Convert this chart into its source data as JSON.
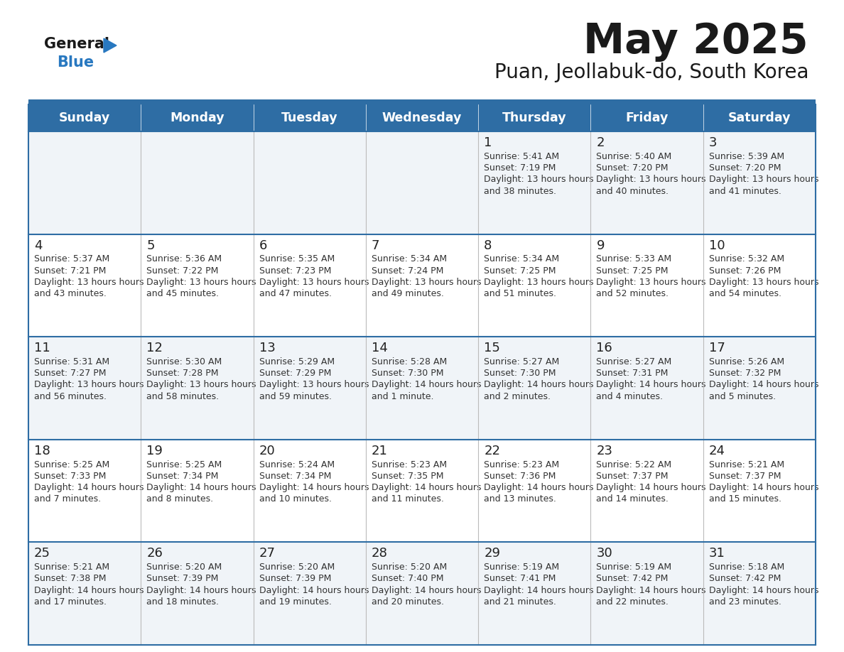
{
  "title": "May 2025",
  "subtitle": "Puan, Jeollabuk-do, South Korea",
  "days_of_week": [
    "Sunday",
    "Monday",
    "Tuesday",
    "Wednesday",
    "Thursday",
    "Friday",
    "Saturday"
  ],
  "header_bg": "#2E6DA4",
  "header_text_color": "#FFFFFF",
  "row_bg_odd": "#F0F4F8",
  "row_bg_even": "#FFFFFF",
  "border_color": "#2E6DA4",
  "day_num_color": "#222222",
  "cell_text_color": "#333333",
  "title_color": "#1a1a1a",
  "subtitle_color": "#1a1a1a",
  "logo_general_color": "#1a1a1a",
  "logo_blue_color": "#2878C0",
  "logo_triangle_color": "#2878C0",
  "calendar_data": [
    [
      null,
      null,
      null,
      null,
      {
        "day": 1,
        "sunrise": "5:41 AM",
        "sunset": "7:19 PM",
        "daylight": "13 hours and 38 minutes"
      },
      {
        "day": 2,
        "sunrise": "5:40 AM",
        "sunset": "7:20 PM",
        "daylight": "13 hours and 40 minutes"
      },
      {
        "day": 3,
        "sunrise": "5:39 AM",
        "sunset": "7:20 PM",
        "daylight": "13 hours and 41 minutes"
      }
    ],
    [
      {
        "day": 4,
        "sunrise": "5:37 AM",
        "sunset": "7:21 PM",
        "daylight": "13 hours and 43 minutes"
      },
      {
        "day": 5,
        "sunrise": "5:36 AM",
        "sunset": "7:22 PM",
        "daylight": "13 hours and 45 minutes"
      },
      {
        "day": 6,
        "sunrise": "5:35 AM",
        "sunset": "7:23 PM",
        "daylight": "13 hours and 47 minutes"
      },
      {
        "day": 7,
        "sunrise": "5:34 AM",
        "sunset": "7:24 PM",
        "daylight": "13 hours and 49 minutes"
      },
      {
        "day": 8,
        "sunrise": "5:34 AM",
        "sunset": "7:25 PM",
        "daylight": "13 hours and 51 minutes"
      },
      {
        "day": 9,
        "sunrise": "5:33 AM",
        "sunset": "7:25 PM",
        "daylight": "13 hours and 52 minutes"
      },
      {
        "day": 10,
        "sunrise": "5:32 AM",
        "sunset": "7:26 PM",
        "daylight": "13 hours and 54 minutes"
      }
    ],
    [
      {
        "day": 11,
        "sunrise": "5:31 AM",
        "sunset": "7:27 PM",
        "daylight": "13 hours and 56 minutes"
      },
      {
        "day": 12,
        "sunrise": "5:30 AM",
        "sunset": "7:28 PM",
        "daylight": "13 hours and 58 minutes"
      },
      {
        "day": 13,
        "sunrise": "5:29 AM",
        "sunset": "7:29 PM",
        "daylight": "13 hours and 59 minutes"
      },
      {
        "day": 14,
        "sunrise": "5:28 AM",
        "sunset": "7:30 PM",
        "daylight": "14 hours and 1 minute"
      },
      {
        "day": 15,
        "sunrise": "5:27 AM",
        "sunset": "7:30 PM",
        "daylight": "14 hours and 2 minutes"
      },
      {
        "day": 16,
        "sunrise": "5:27 AM",
        "sunset": "7:31 PM",
        "daylight": "14 hours and 4 minutes"
      },
      {
        "day": 17,
        "sunrise": "5:26 AM",
        "sunset": "7:32 PM",
        "daylight": "14 hours and 5 minutes"
      }
    ],
    [
      {
        "day": 18,
        "sunrise": "5:25 AM",
        "sunset": "7:33 PM",
        "daylight": "14 hours and 7 minutes"
      },
      {
        "day": 19,
        "sunrise": "5:25 AM",
        "sunset": "7:34 PM",
        "daylight": "14 hours and 8 minutes"
      },
      {
        "day": 20,
        "sunrise": "5:24 AM",
        "sunset": "7:34 PM",
        "daylight": "14 hours and 10 minutes"
      },
      {
        "day": 21,
        "sunrise": "5:23 AM",
        "sunset": "7:35 PM",
        "daylight": "14 hours and 11 minutes"
      },
      {
        "day": 22,
        "sunrise": "5:23 AM",
        "sunset": "7:36 PM",
        "daylight": "14 hours and 13 minutes"
      },
      {
        "day": 23,
        "sunrise": "5:22 AM",
        "sunset": "7:37 PM",
        "daylight": "14 hours and 14 minutes"
      },
      {
        "day": 24,
        "sunrise": "5:21 AM",
        "sunset": "7:37 PM",
        "daylight": "14 hours and 15 minutes"
      }
    ],
    [
      {
        "day": 25,
        "sunrise": "5:21 AM",
        "sunset": "7:38 PM",
        "daylight": "14 hours and 17 minutes"
      },
      {
        "day": 26,
        "sunrise": "5:20 AM",
        "sunset": "7:39 PM",
        "daylight": "14 hours and 18 minutes"
      },
      {
        "day": 27,
        "sunrise": "5:20 AM",
        "sunset": "7:39 PM",
        "daylight": "14 hours and 19 minutes"
      },
      {
        "day": 28,
        "sunrise": "5:20 AM",
        "sunset": "7:40 PM",
        "daylight": "14 hours and 20 minutes"
      },
      {
        "day": 29,
        "sunrise": "5:19 AM",
        "sunset": "7:41 PM",
        "daylight": "14 hours and 21 minutes"
      },
      {
        "day": 30,
        "sunrise": "5:19 AM",
        "sunset": "7:42 PM",
        "daylight": "14 hours and 22 minutes"
      },
      {
        "day": 31,
        "sunrise": "5:18 AM",
        "sunset": "7:42 PM",
        "daylight": "14 hours and 23 minutes"
      }
    ]
  ]
}
